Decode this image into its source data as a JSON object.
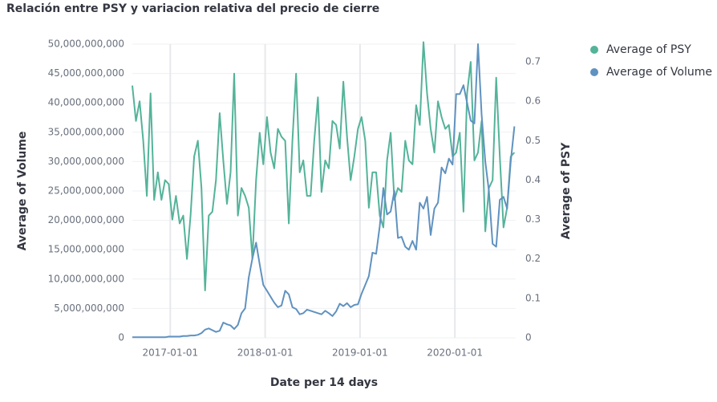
{
  "chart_data": {
    "type": "line",
    "title": "Relación entre PSY y variacion relativa del precio de cierre",
    "x_label": "Date per 14 days",
    "y_label": "Average of Volume",
    "y2_label": "Average of PSY",
    "x": [
      "2016-08-08",
      "2016-08-22",
      "2016-09-05",
      "2016-09-19",
      "2016-10-03",
      "2016-10-17",
      "2016-10-31",
      "2016-11-14",
      "2016-11-28",
      "2016-12-12",
      "2016-12-26",
      "2017-01-09",
      "2017-01-23",
      "2017-02-06",
      "2017-02-20",
      "2017-03-06",
      "2017-03-20",
      "2017-04-03",
      "2017-04-17",
      "2017-05-01",
      "2017-05-15",
      "2017-05-29",
      "2017-06-12",
      "2017-06-26",
      "2017-07-10",
      "2017-07-24",
      "2017-08-07",
      "2017-08-21",
      "2017-09-04",
      "2017-09-18",
      "2017-10-02",
      "2017-10-16",
      "2017-10-30",
      "2017-11-13",
      "2017-11-27",
      "2017-12-11",
      "2017-12-25",
      "2018-01-08",
      "2018-01-22",
      "2018-02-05",
      "2018-02-19",
      "2018-03-05",
      "2018-03-19",
      "2018-04-02",
      "2018-04-16",
      "2018-04-30",
      "2018-05-14",
      "2018-05-28",
      "2018-06-11",
      "2018-06-25",
      "2018-07-09",
      "2018-07-23",
      "2018-08-06",
      "2018-08-20",
      "2018-09-03",
      "2018-09-17",
      "2018-10-01",
      "2018-10-15",
      "2018-10-29",
      "2018-11-12",
      "2018-11-26",
      "2018-12-10",
      "2018-12-24",
      "2019-01-07",
      "2019-01-21",
      "2019-02-04",
      "2019-02-18",
      "2019-03-04",
      "2019-03-18",
      "2019-04-01",
      "2019-04-15",
      "2019-04-29",
      "2019-05-13",
      "2019-05-27",
      "2019-06-10",
      "2019-06-24",
      "2019-07-08",
      "2019-07-22",
      "2019-08-05",
      "2019-08-19",
      "2019-09-02",
      "2019-09-16",
      "2019-09-30",
      "2019-10-14",
      "2019-10-28",
      "2019-11-11",
      "2019-11-25",
      "2019-12-09",
      "2019-12-23",
      "2020-01-06",
      "2020-01-20",
      "2020-02-03",
      "2020-02-17",
      "2020-03-02",
      "2020-03-16",
      "2020-03-30",
      "2020-04-13",
      "2020-04-27",
      "2020-05-11",
      "2020-05-25",
      "2020-06-08",
      "2020-06-22",
      "2020-07-06",
      "2020-07-20",
      "2020-08-03",
      "2020-08-17"
    ],
    "xlim": [
      "2016-08-08",
      "2020-08-22"
    ],
    "xticks": [
      "2017-01-01",
      "2018-01-01",
      "2019-01-01",
      "2020-01-01"
    ],
    "series": [
      {
        "name": "Average of PSY",
        "color": "#54b399",
        "axis": "y2",
        "values": [
          0.64,
          0.55,
          0.6,
          0.5,
          0.36,
          0.62,
          0.35,
          0.42,
          0.35,
          0.4,
          0.39,
          0.3,
          0.36,
          0.29,
          0.31,
          0.2,
          0.31,
          0.46,
          0.5,
          0.38,
          0.12,
          0.31,
          0.32,
          0.4,
          0.57,
          0.45,
          0.34,
          0.42,
          0.67,
          0.31,
          0.38,
          0.36,
          0.33,
          0.2,
          0.4,
          0.52,
          0.44,
          0.56,
          0.47,
          0.43,
          0.53,
          0.51,
          0.5,
          0.29,
          0.5,
          0.67,
          0.42,
          0.45,
          0.36,
          0.36,
          0.5,
          0.61,
          0.37,
          0.45,
          0.43,
          0.55,
          0.54,
          0.48,
          0.65,
          0.51,
          0.4,
          0.46,
          0.53,
          0.56,
          0.5,
          0.33,
          0.42,
          0.42,
          0.31,
          0.28,
          0.45,
          0.52,
          0.35,
          0.38,
          0.37,
          0.5,
          0.45,
          0.44,
          0.59,
          0.54,
          0.75,
          0.62,
          0.53,
          0.47,
          0.6,
          0.56,
          0.53,
          0.54,
          0.46,
          0.47,
          0.52,
          0.32,
          0.62,
          0.7,
          0.45,
          0.47,
          0.55,
          0.27,
          0.38,
          0.4,
          0.66,
          0.46,
          0.28,
          0.33,
          0.46,
          0.47
        ]
      },
      {
        "name": "Average of Volume",
        "color": "#6092c0",
        "values": [
          100000000.0,
          100000000.0,
          100000000.0,
          100000000.0,
          100000000.0,
          100000000.0,
          100000000.0,
          100000000.0,
          100000000.0,
          100000000.0,
          200000000.0,
          200000000.0,
          200000000.0,
          200000000.0,
          300000000.0,
          300000000.0,
          400000000.0,
          400000000.0,
          500000000.0,
          800000000.0,
          1400000000.0,
          1600000000.0,
          1300000000.0,
          1000000000.0,
          1200000000.0,
          2600000000.0,
          2300000000.0,
          2100000000.0,
          1500000000.0,
          2200000000.0,
          4200000000.0,
          5000000000.0,
          10300000000.0,
          13500000000.0,
          16200000000.0,
          12500000000.0,
          9000000000.0,
          8000000000.0,
          7000000000.0,
          6000000000.0,
          5200000000.0,
          5500000000.0,
          8000000000.0,
          7400000000.0,
          5200000000.0,
          4900000000.0,
          4000000000.0,
          4200000000.0,
          4800000000.0,
          4600000000.0,
          4400000000.0,
          4200000000.0,
          4000000000.0,
          4600000000.0,
          4200000000.0,
          3700000000.0,
          4500000000.0,
          5800000000.0,
          5400000000.0,
          5900000000.0,
          5200000000.0,
          5600000000.0,
          5700000000.0,
          7500000000.0,
          9000000000.0,
          10500000000.0,
          14500000000.0,
          14300000000.0,
          19000000000.0,
          25500000000.0,
          21000000000.0,
          21500000000.0,
          25000000000.0,
          17000000000.0,
          17200000000.0,
          15500000000.0,
          15000000000.0,
          16500000000.0,
          15000000000.0,
          23000000000.0,
          22000000000.0,
          24000000000.0,
          17500000000.0,
          22000000000.0,
          23000000000.0,
          29000000000.0,
          28000000000.0,
          30500000000.0,
          29500000000.0,
          41500000000.0,
          41500000000.0,
          43000000000.0,
          40000000000.0,
          37000000000.0,
          36500000000.0,
          50000000000.0,
          38000000000.0,
          30000000000.0,
          25000000000.0,
          16000000000.0,
          15500000000.0,
          23500000000.0,
          24000000000.0,
          22000000000.0,
          30000000000.0,
          36000000000.0
        ]
      }
    ],
    "ylim": [
      0,
      50000000000.0
    ],
    "yticks": [
      0,
      {
        "value": 5000000000.0,
        "label": "5,000,000,000"
      },
      {
        "value": 10000000000.0,
        "label": "10,000,000,000"
      },
      {
        "value": 15000000000.0,
        "label": "15,000,000,000"
      },
      {
        "value": 20000000000.0,
        "label": "20,000,000,000"
      },
      {
        "value": 25000000000.0,
        "label": "25,000,000,000"
      },
      {
        "value": 30000000000.0,
        "label": "30,000,000,000"
      },
      {
        "value": 35000000000.0,
        "label": "35,000,000,000"
      },
      {
        "value": 40000000000.0,
        "label": "40,000,000,000"
      },
      {
        "value": 45000000000.0,
        "label": "45,000,000,000"
      },
      {
        "value": 50000000000.0,
        "label": "50,000,000,000"
      }
    ],
    "y2lim": [
      0,
      0.745
    ],
    "y2ticks": [
      0,
      0.1,
      0.2,
      0.3,
      0.4,
      0.5,
      0.6,
      0.7
    ],
    "grid": true,
    "legend": "top-right"
  }
}
